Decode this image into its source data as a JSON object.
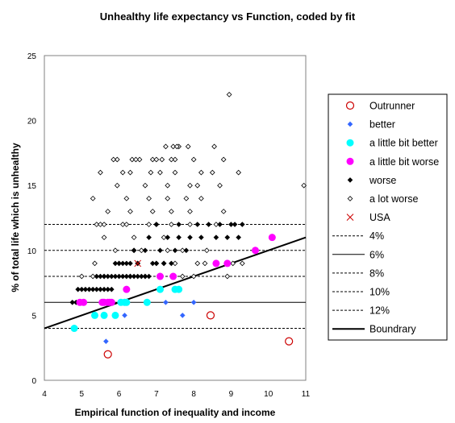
{
  "chart_data": {
    "type": "scatter",
    "title": "Unhealthy life expectancy vs Function, coded by fit",
    "xlabel": "Empirical function of inequality and income",
    "ylabel": "% of total life which is unhealthy",
    "xlim": [
      4,
      11
    ],
    "ylim": [
      0,
      25
    ],
    "xticks": [
      "4",
      "5",
      "6",
      "7",
      "8",
      "9",
      "10",
      "11"
    ],
    "yticks": [
      "0",
      "5",
      "10",
      "15",
      "20",
      "25"
    ],
    "grid": false,
    "legend_position": "right",
    "series": [
      {
        "name": "Outrunner",
        "marker": "circle-open",
        "color": "#cc0000",
        "x": [
          5.7,
          8.45,
          10.55
        ],
        "y": [
          2,
          5,
          3
        ]
      },
      {
        "name": "better",
        "marker": "diamond",
        "color": "#3366ff",
        "x": [
          5.65,
          6.15,
          7.25,
          7.7,
          8.0
        ],
        "y": [
          3,
          5,
          6,
          5,
          6
        ]
      },
      {
        "name": "a little bit better",
        "marker": "circle",
        "color": "#00ffff",
        "x": [
          4.8,
          5.35,
          5.6,
          5.9,
          6.05,
          6.2,
          6.15,
          6.75,
          7.1,
          7.5,
          7.6
        ],
        "y": [
          4,
          5,
          5,
          5,
          6,
          6,
          6,
          6,
          7,
          7,
          7
        ]
      },
      {
        "name": "a little bit worse",
        "marker": "circle",
        "color": "#ff00ff",
        "x": [
          4.95,
          5.05,
          5.55,
          5.6,
          5.7,
          5.75,
          5.8,
          6.2,
          7.1,
          7.45,
          8.6,
          8.9,
          9.65,
          10.1
        ],
        "y": [
          6,
          6,
          6,
          6,
          6,
          6,
          6,
          7,
          8,
          8,
          9,
          9,
          10,
          11
        ]
      },
      {
        "name": "worse",
        "marker": "diamond",
        "color": "#000000",
        "x": [
          4.75,
          4.85,
          4.95,
          4.9,
          5.0,
          5.1,
          5.2,
          5.3,
          5.4,
          5.5,
          5.6,
          5.7,
          5.8,
          5.4,
          5.5,
          5.6,
          5.7,
          5.8,
          5.9,
          6.0,
          6.1,
          6.2,
          6.3,
          6.4,
          6.5,
          6.6,
          6.7,
          6.8,
          5.9,
          6.0,
          6.1,
          6.2,
          6.3,
          6.5,
          6.9,
          7.0,
          7.2,
          7.4,
          6.4,
          6.7,
          7.1,
          7.5,
          7.8,
          6.8,
          7.3,
          7.6,
          7.9,
          8.2,
          8.6,
          8.9,
          7.0,
          7.6,
          8.1,
          8.4,
          8.7,
          9.0,
          9.1,
          9.3,
          9.2
        ],
        "y": [
          6,
          6,
          6,
          7,
          7,
          7,
          7,
          7,
          7,
          7,
          7,
          7,
          7,
          8,
          8,
          8,
          8,
          8,
          8,
          8,
          8,
          8,
          8,
          8,
          8,
          8,
          8,
          8,
          9,
          9,
          9,
          9,
          9,
          9,
          9,
          9,
          9,
          9,
          10,
          10,
          10,
          10,
          10,
          11,
          11,
          11,
          11,
          11,
          11,
          11,
          12,
          12,
          12,
          12,
          12,
          12,
          12,
          12,
          11
        ]
      },
      {
        "name": "a lot worse",
        "marker": "diamond-open",
        "color": "#000000",
        "x": [
          5.0,
          5.3,
          5.6,
          6.3,
          6.7,
          7.7,
          8.0,
          8.9,
          5.35,
          6.0,
          6.5,
          7.0,
          7.2,
          7.5,
          8.1,
          8.3,
          9.05,
          9.3,
          5.9,
          6.4,
          6.6,
          7.3,
          7.7,
          8.35,
          5.6,
          6.4,
          7.2,
          5.4,
          5.5,
          5.6,
          6.1,
          6.2,
          6.8,
          7.0,
          7.4,
          7.9,
          8.6,
          5.7,
          6.3,
          6.9,
          7.4,
          7.9,
          8.8,
          5.3,
          6.2,
          6.8,
          7.3,
          7.8,
          8.2,
          5.95,
          6.7,
          7.3,
          7.9,
          8.1,
          8.7,
          6.1,
          6.3,
          7.1,
          7.5,
          8.2,
          9.2,
          5.5,
          6.35,
          6.9,
          7.5,
          8.0,
          8.8,
          5.95,
          6.55,
          7.0,
          7.6,
          8.55,
          5.85,
          6.45,
          7.15,
          7.4,
          6.85,
          7.25,
          8.5,
          8.95,
          10.95,
          7.45,
          7.55,
          7.85
        ],
        "y": [
          8,
          8,
          8,
          8,
          8,
          8,
          8,
          8,
          9,
          9,
          9,
          9,
          9,
          9,
          9,
          9,
          9,
          9,
          10,
          10,
          10,
          10,
          10,
          10,
          11,
          11,
          11,
          12,
          12,
          12,
          12,
          12,
          12,
          12,
          12,
          12,
          12,
          13,
          13,
          13,
          13,
          13,
          13,
          14,
          14,
          14,
          14,
          14,
          14,
          15,
          15,
          15,
          15,
          15,
          15,
          16,
          16,
          16,
          16,
          16,
          16,
          16,
          17,
          17,
          17,
          17,
          17,
          17,
          17,
          17,
          18,
          18,
          17,
          17,
          17,
          17,
          16,
          18,
          16,
          22,
          15,
          18,
          18,
          18
        ]
      },
      {
        "name": "USA",
        "marker": "x",
        "color": "#cc0000",
        "x": [
          6.5
        ],
        "y": [
          9
        ]
      }
    ],
    "reference_lines": [
      {
        "name": "4%",
        "y": 4,
        "style": "dashed"
      },
      {
        "name": "6%",
        "y": 6,
        "style": "solid"
      },
      {
        "name": "8%",
        "y": 8,
        "style": "dashed"
      },
      {
        "name": "10%",
        "y": 10,
        "style": "dashed"
      },
      {
        "name": "12%",
        "y": 12,
        "style": "dashed"
      }
    ],
    "boundary": {
      "name": "Boundrary",
      "x": [
        4,
        11
      ],
      "y": [
        4,
        11
      ]
    }
  }
}
